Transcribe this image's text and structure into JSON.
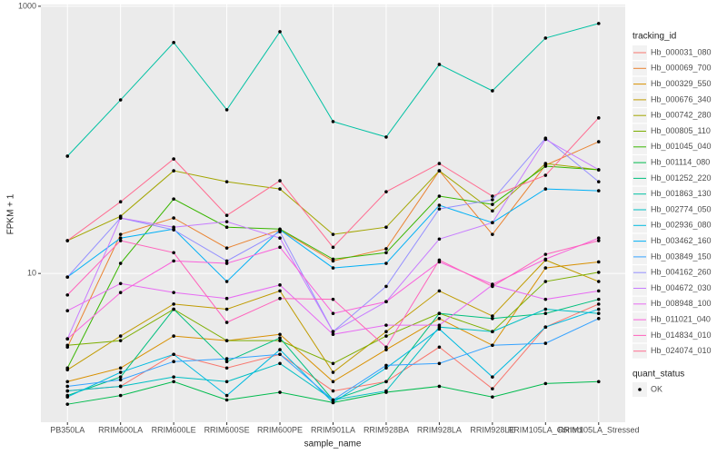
{
  "chart_data": {
    "type": "line",
    "log_y": true,
    "grid": true,
    "legend_position": "right",
    "x_label": "sample_name",
    "y_label": "FPKM + 1",
    "legend_title": "tracking_id",
    "shape_legend": {
      "title": "quant_status",
      "labels": [
        "OK"
      ]
    },
    "categories": [
      "PB350LA",
      "RRIM600LA",
      "RRIM600LE",
      "RRIM600SE",
      "RRIM600PE",
      "RRIM901LA",
      "RRIM928BA",
      "RRIM928LA",
      "RRIM928LE",
      "RRIM105LA_Control",
      "RRIM105LA_Stressed"
    ],
    "ylim": [
      0.77,
      1030
    ],
    "yticks": [
      10,
      1000
    ],
    "series": [
      {
        "name": "Hb_000031_080",
        "color": "#F8766D",
        "values": [
          1.32,
          1.43,
          2.48,
          1.96,
          2.48,
          1.32,
          1.55,
          2.81,
          1.37,
          3.97,
          5.9
        ]
      },
      {
        "name": "Hb_000069_700",
        "color": "#EA8331",
        "values": [
          2.81,
          19.6,
          26.0,
          15.5,
          21.2,
          12.4,
          15.3,
          58.7,
          19.6,
          64.6,
          96.8
        ]
      },
      {
        "name": "Hb_000329_550",
        "color": "#D89000",
        "values": [
          1.55,
          1.96,
          3.4,
          3.14,
          3.5,
          1.55,
          2.69,
          4.6,
          2.9,
          11.0,
          12.2
        ]
      },
      {
        "name": "Hb_000676_340",
        "color": "#C09B00",
        "values": [
          1.9,
          3.4,
          5.9,
          5.4,
          7.4,
          1.82,
          3.67,
          7.4,
          4.8,
          12.6,
          8.7
        ]
      },
      {
        "name": "Hb_000742_280",
        "color": "#A3A500",
        "values": [
          17.6,
          26.8,
          58.7,
          48.6,
          42.9,
          19.6,
          22.2,
          58.7,
          29.4,
          66.5,
          59.7
        ]
      },
      {
        "name": "Hb_000805_110",
        "color": "#7CAE00",
        "values": [
          2.9,
          3.14,
          5.4,
          3.14,
          3.14,
          2.12,
          3.4,
          5.02,
          3.67,
          8.7,
          10.2
        ]
      },
      {
        "name": "Hb_001045_040",
        "color": "#39B600",
        "values": [
          1.96,
          11.9,
          36.1,
          22.2,
          21.5,
          12.8,
          14.3,
          37.9,
          32.9,
          63.5,
          59.7
        ]
      },
      {
        "name": "Hb_001114_080",
        "color": "#00BB4E",
        "values": [
          1.05,
          1.22,
          1.55,
          1.13,
          1.29,
          1.08,
          1.29,
          1.43,
          1.19,
          1.5,
          1.55
        ]
      },
      {
        "name": "Hb_001252_220",
        "color": "#00BF7D",
        "values": [
          1.22,
          1.68,
          5.4,
          2.19,
          3.29,
          1.13,
          1.55,
          5.02,
          4.6,
          5.02,
          6.4
        ]
      },
      {
        "name": "Hb_001863_130",
        "color": "#00C1A3",
        "values": [
          75.5,
          199,
          535,
          168,
          645,
          137,
          105,
          367,
          233,
          578,
          743
        ]
      },
      {
        "name": "Hb_002774_050",
        "color": "#00BFC4",
        "values": [
          1.32,
          1.43,
          1.68,
          1.55,
          2.12,
          1.13,
          1.32,
          3.97,
          3.67,
          5.4,
          5.02
        ]
      },
      {
        "name": "Hb_002936_080",
        "color": "#00BAE0",
        "values": [
          1.19,
          1.82,
          2.48,
          1.22,
          2.69,
          1.08,
          1.96,
          3.84,
          1.68,
          3.97,
          5.4
        ]
      },
      {
        "name": "Hb_003462_160",
        "color": "#00B0F6",
        "values": [
          9.4,
          18.4,
          21.5,
          8.7,
          21.2,
          11.0,
          11.9,
          32.4,
          24.0,
          42.9,
          41.6
        ]
      },
      {
        "name": "Hb_003849_150",
        "color": "#35A2FF",
        "values": [
          1.43,
          1.6,
          2.19,
          2.3,
          2.48,
          1.13,
          2.05,
          2.12,
          2.9,
          3.0,
          4.6
        ]
      },
      {
        "name": "Hb_004162_260",
        "color": "#9590FF",
        "values": [
          9.4,
          26.0,
          21.2,
          12.4,
          20.5,
          3.67,
          8.0,
          30.4,
          35.6,
          103,
          48.6
        ]
      },
      {
        "name": "Hb_004672_030",
        "color": "#C77CFF",
        "values": [
          3.24,
          26.0,
          22.2,
          24.4,
          18.4,
          3.67,
          6.15,
          18.1,
          24.0,
          101,
          59.7
        ]
      },
      {
        "name": "Hb_008948_100",
        "color": "#E76BF3",
        "values": [
          5.26,
          8.4,
          7.2,
          6.5,
          8.2,
          3.5,
          4.1,
          4.1,
          8.2,
          6.4,
          7.4
        ]
      },
      {
        "name": "Hb_011021_040",
        "color": "#FA62DB",
        "values": [
          3.24,
          7.2,
          12.4,
          11.9,
          15.7,
          5.02,
          6.15,
          12.2,
          8.3,
          12.8,
          18.4
        ]
      },
      {
        "name": "Hb_014834_010",
        "color": "#FF62BC",
        "values": [
          6.9,
          17.6,
          14.3,
          4.3,
          6.5,
          6.4,
          2.81,
          12.6,
          8.0,
          13.9,
          17.6
        ]
      },
      {
        "name": "Hb_024074_010",
        "color": "#FF6C91",
        "values": [
          17.6,
          34.4,
          71.9,
          27.2,
          49.4,
          15.7,
          40.9,
          66.5,
          37.9,
          54.3,
          146
        ]
      }
    ]
  }
}
